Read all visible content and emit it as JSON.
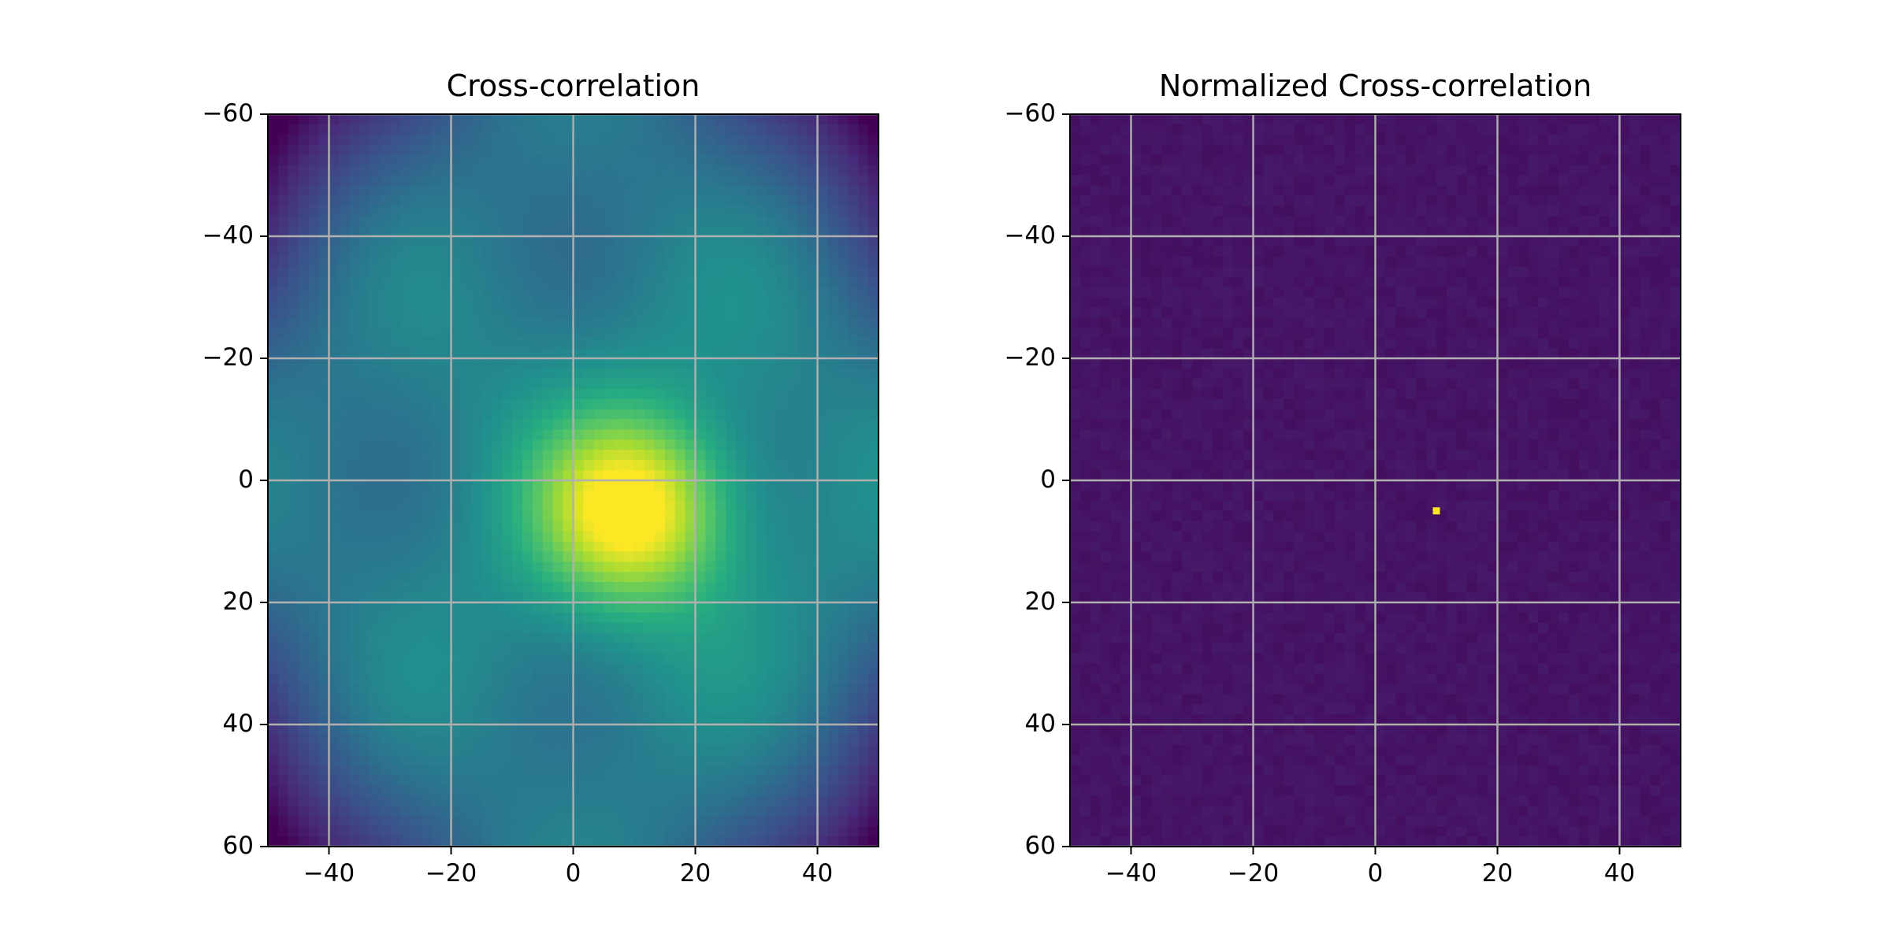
{
  "figure": {
    "background": "#ffffff",
    "colormap": "viridis"
  },
  "chart_data": [
    {
      "type": "heatmap",
      "title": "Cross-correlation",
      "xlabel": "",
      "ylabel": "",
      "xlim": [
        -50,
        50
      ],
      "ylim": [
        60,
        -60
      ],
      "x_ticks": [
        -40,
        -20,
        0,
        20,
        40
      ],
      "x_tick_labels": [
        "−40",
        "−20",
        "0",
        "20",
        "40"
      ],
      "y_ticks": [
        -60,
        -40,
        -20,
        0,
        20,
        40,
        60
      ],
      "y_tick_labels": [
        "−60",
        "−40",
        "−20",
        "0",
        "20",
        "40",
        "60"
      ],
      "grid": true,
      "peak": {
        "x": 10,
        "y": 5
      },
      "pattern": "smooth broad peak near (10, 5), darker corners"
    },
    {
      "type": "heatmap",
      "title": "Normalized Cross-correlation",
      "xlabel": "",
      "ylabel": "",
      "xlim": [
        -50,
        50
      ],
      "ylim": [
        60,
        -60
      ],
      "x_ticks": [
        -40,
        -20,
        0,
        20,
        40
      ],
      "x_tick_labels": [
        "−40",
        "−20",
        "0",
        "20",
        "40"
      ],
      "y_ticks": [
        -60,
        -40,
        -20,
        0,
        20,
        40,
        60
      ],
      "y_tick_labels": [
        "−60",
        "−40",
        "−20",
        "0",
        "20",
        "40",
        "60"
      ],
      "grid": true,
      "peak": {
        "x": 10,
        "y": 5
      },
      "pattern": "uniform low background with single bright pixel at (10, 5)"
    }
  ]
}
